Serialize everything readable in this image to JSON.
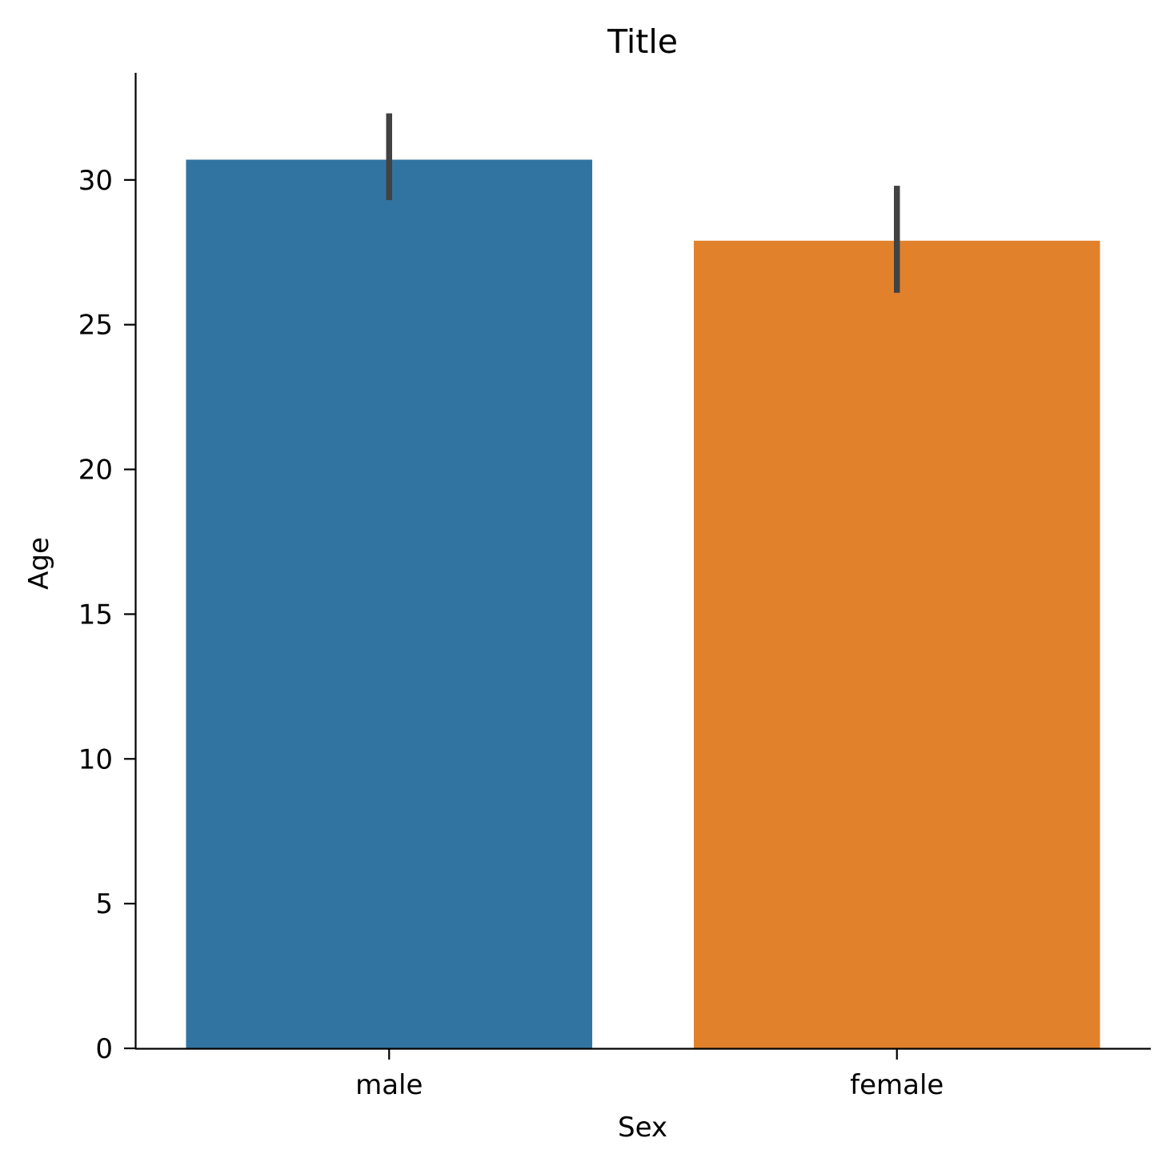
{
  "chart_data": {
    "type": "bar",
    "title": "Title",
    "xlabel": "Sex",
    "ylabel": "Age",
    "categories": [
      "male",
      "female"
    ],
    "values": [
      30.7,
      27.9
    ],
    "error_bars": [
      {
        "low": 29.3,
        "high": 32.3
      },
      {
        "low": 26.1,
        "high": 29.8
      }
    ],
    "colors": [
      "#3274a1",
      "#e1812c"
    ],
    "error_bar_color": "#424242",
    "ylim": [
      0,
      33.7
    ],
    "yticks": [
      "0",
      "5",
      "10",
      "15",
      "20",
      "25",
      "30"
    ],
    "grid": false,
    "legend": "none"
  }
}
